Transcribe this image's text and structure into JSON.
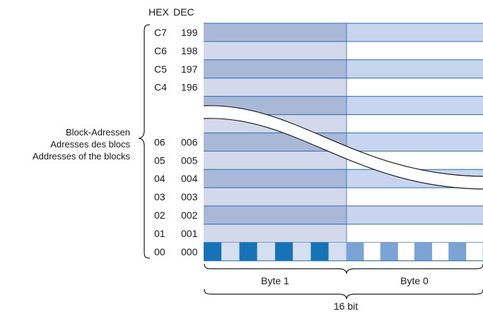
{
  "header": {
    "hex": "HEX",
    "dec": "DEC"
  },
  "upper_rows": [
    {
      "hex": "C7",
      "dec": "199"
    },
    {
      "hex": "C6",
      "dec": "198"
    },
    {
      "hex": "C5",
      "dec": "197"
    },
    {
      "hex": "C4",
      "dec": "196"
    }
  ],
  "lower_rows": [
    {
      "hex": "06",
      "dec": "006"
    },
    {
      "hex": "05",
      "dec": "005"
    },
    {
      "hex": "04",
      "dec": "004"
    },
    {
      "hex": "03",
      "dec": "003"
    },
    {
      "hex": "02",
      "dec": "002"
    },
    {
      "hex": "01",
      "dec": "001"
    },
    {
      "hex": "00",
      "dec": "000"
    }
  ],
  "block_label": {
    "de": "Block-Adressen",
    "fr": "Adresses des blocs",
    "en": "Addresses of the blocks"
  },
  "bytes": {
    "left": "Byte 1",
    "right": "Byte 0"
  },
  "width_label": "16 bit",
  "colors": {
    "byte1_dark": "#aab8d8",
    "byte1_light": "#d3d9ea",
    "byte0_medium": "#c7d6ee",
    "byte0_white": "#ffffff",
    "row_line": "#1f6fb8",
    "bit_dark": "#1673b8",
    "bit_medium": "#7ba3d6",
    "bit_light": "#d6dff0"
  }
}
